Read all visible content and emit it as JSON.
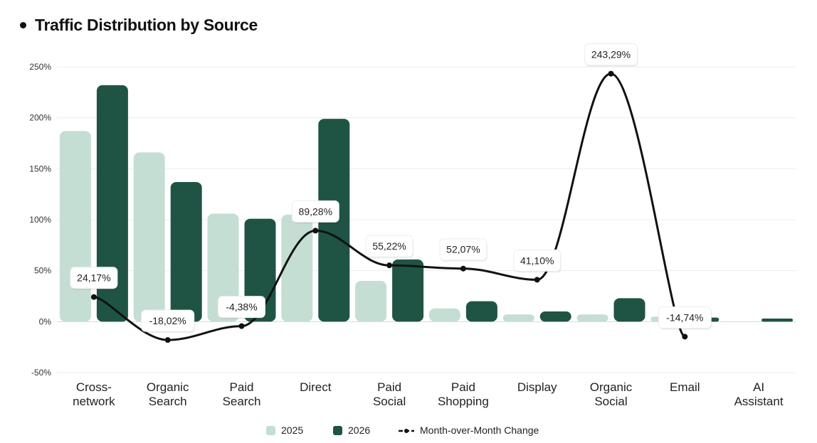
{
  "chart_data": {
    "type": "bar",
    "title": "Traffic Distribution by Source",
    "categories": [
      [
        "Cross-",
        "network"
      ],
      [
        "Organic",
        "Search"
      ],
      [
        "Paid",
        "Search"
      ],
      [
        "Direct"
      ],
      [
        "Paid",
        "Social"
      ],
      [
        "Paid",
        "Shopping"
      ],
      [
        "Display"
      ],
      [
        "Organic",
        "Social"
      ],
      [
        "Email"
      ],
      [
        "AI",
        "Assistant"
      ]
    ],
    "series": [
      {
        "name": "2025",
        "kind": "bar",
        "color": "#c5ded4",
        "values": [
          187,
          166,
          106,
          105,
          40,
          13,
          7,
          7,
          5,
          0
        ]
      },
      {
        "name": "2026",
        "kind": "bar",
        "color": "#1f5444",
        "values": [
          232,
          137,
          101,
          199,
          61,
          20,
          10,
          23,
          4,
          3
        ]
      },
      {
        "name": "Month-over-Month Change",
        "kind": "line",
        "color": "#111111",
        "values": [
          24.17,
          -18.02,
          -4.38,
          89.28,
          55.22,
          52.07,
          41.1,
          243.29,
          -14.74,
          null
        ],
        "labels": [
          "24,17%",
          "-18,02%",
          "-4,38%",
          "89,28%",
          "55,22%",
          "52,07%",
          "41,10%",
          "243,29%",
          "-14,74%",
          ""
        ]
      }
    ],
    "yticks": [
      "250%",
      "200%",
      "150%",
      "100%",
      "50%",
      "0%",
      "-50%"
    ],
    "ylim": [
      -50,
      250
    ],
    "grid": true,
    "legend_position": "bottom-center"
  }
}
